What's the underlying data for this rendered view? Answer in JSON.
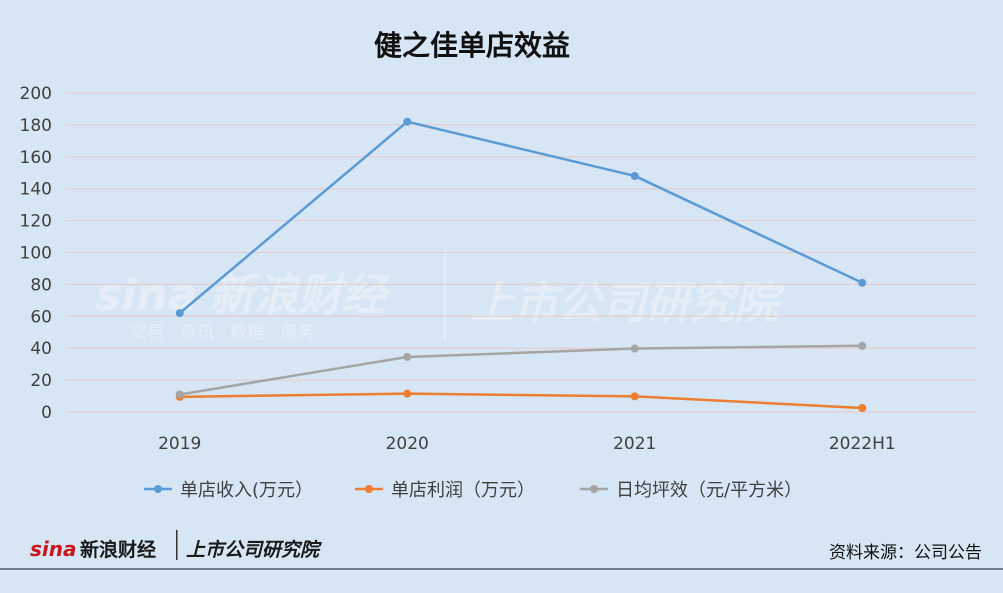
{
  "chart_data": {
    "type": "line",
    "title": "健之佳单店效益",
    "categories": [
      "2019",
      "2020",
      "2021",
      "2022H1"
    ],
    "ylim": [
      0,
      200
    ],
    "yticks": [
      0,
      20,
      40,
      60,
      80,
      100,
      120,
      140,
      160,
      180,
      200
    ],
    "grid": true,
    "legend_position": "bottom",
    "series": [
      {
        "name": "单店收入(万元）",
        "color": "#5b9bd5",
        "values": [
          62,
          182,
          148,
          81
        ]
      },
      {
        "name": "单店利润（万元）",
        "color": "#ed7d31",
        "values": [
          9.5,
          11.5,
          9.8,
          2.5
        ]
      },
      {
        "name": "日均坪效（元/平方米）",
        "color": "#a5a5a5",
        "values": [
          11,
          34.5,
          39.8,
          41.5
        ]
      }
    ]
  },
  "source": "资料来源：公司公告",
  "watermark": {
    "brand": "新浪财经",
    "services": "交易 · 资讯 · 数据 · 服务",
    "institute": "上市公司研究院"
  },
  "logo": {
    "sina": "sina",
    "brand": "新浪财经",
    "institute": "上市公司研究院"
  }
}
